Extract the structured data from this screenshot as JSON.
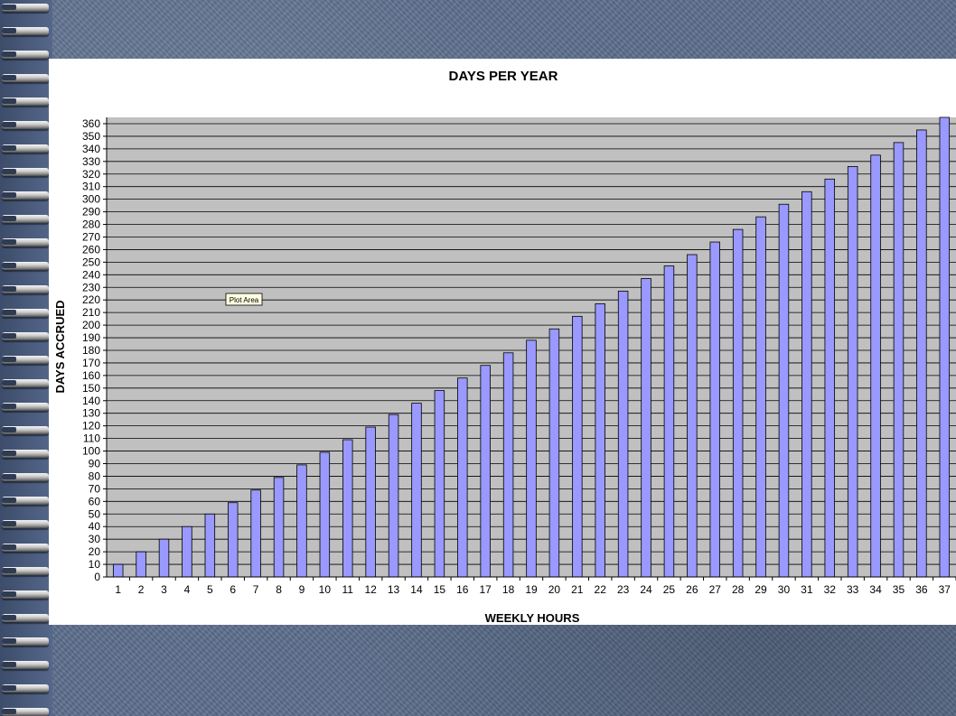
{
  "chart_data": {
    "type": "bar",
    "title": "DAYS PER YEAR",
    "xlabel": "WEEKLY HOURS",
    "ylabel": "DAYS ACCRUED",
    "categories": [
      "1",
      "2",
      "3",
      "4",
      "5",
      "6",
      "7",
      "8",
      "9",
      "10",
      "11",
      "12",
      "13",
      "14",
      "15",
      "16",
      "17",
      "18",
      "19",
      "20",
      "21",
      "22",
      "23",
      "24",
      "25",
      "26",
      "27",
      "28",
      "29",
      "30",
      "31",
      "32",
      "33",
      "34",
      "35",
      "36",
      "37"
    ],
    "values": [
      10,
      20,
      30,
      40,
      50,
      59,
      69,
      79,
      89,
      99,
      109,
      119,
      129,
      138,
      148,
      158,
      168,
      178,
      188,
      197,
      207,
      217,
      227,
      237,
      247,
      256,
      266,
      276,
      286,
      296,
      306,
      316,
      326,
      335,
      345,
      355,
      365
    ],
    "ylim": [
      0,
      365
    ],
    "yticks": [
      0,
      10,
      20,
      30,
      40,
      50,
      60,
      70,
      80,
      90,
      100,
      110,
      120,
      130,
      140,
      150,
      160,
      170,
      180,
      190,
      200,
      210,
      220,
      230,
      240,
      250,
      260,
      270,
      280,
      290,
      300,
      310,
      320,
      330,
      340,
      350,
      360
    ],
    "grid": true,
    "legend": "none",
    "bar_color": "#9999ff",
    "plot_background": "#c0c0c0",
    "tooltip": "Plot Area"
  }
}
